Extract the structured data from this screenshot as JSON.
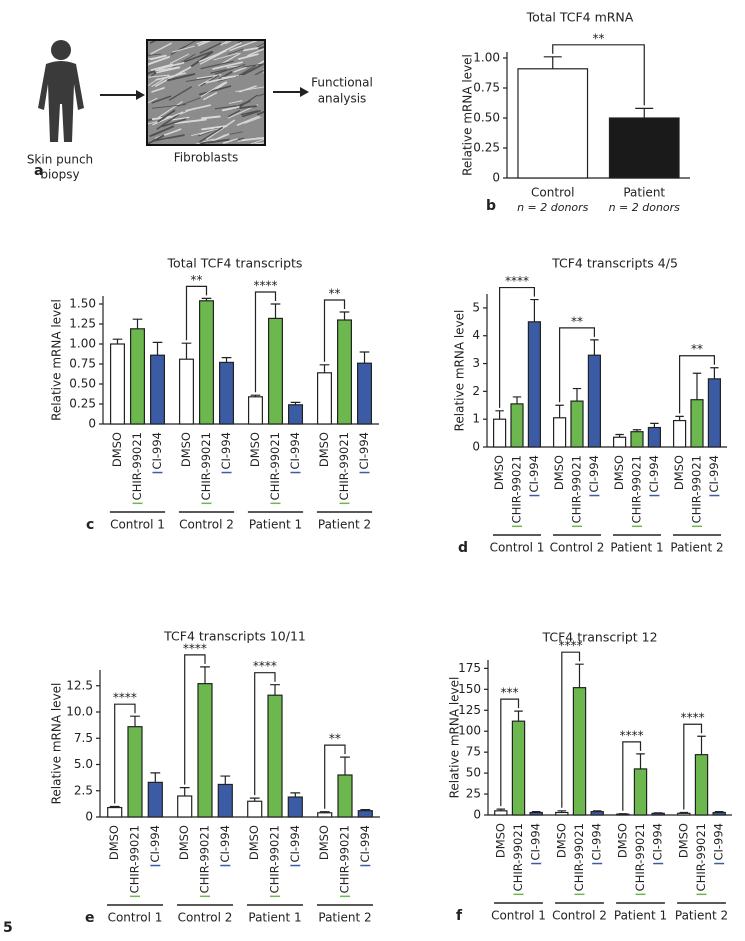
{
  "figure_number": "5",
  "panel_a": {
    "panel": "a",
    "source": [
      "Skin punch",
      "biopsy"
    ],
    "image_label": "Fibroblasts",
    "result": [
      "Functional",
      "analysis"
    ]
  },
  "chart_data": [
    {
      "type": "bar",
      "panel": "b",
      "title": "Total TCF4 mRNA",
      "ylabel": "Relative mRNA level",
      "categories": [
        "Control",
        "Patient"
      ],
      "category_notes": [
        "n = 2 donors",
        "n = 2 donors"
      ],
      "values": [
        0.91,
        0.5
      ],
      "errors": [
        0.1,
        0.08
      ],
      "colors": [
        "#ffffff",
        "#1a1a1a"
      ],
      "ylim": [
        0,
        1.05
      ],
      "yticks": [
        0,
        0.25,
        {
          "value": 0.5,
          "label": "0.50"
        },
        0.75,
        {
          "value": 1,
          "label": "1.00"
        }
      ],
      "annotations": [
        {
          "label": "**",
          "categories": [
            0,
            1
          ]
        }
      ]
    },
    {
      "type": "grouped_bar",
      "panel": "c",
      "title": "Total TCF4 transcripts",
      "ylabel": "Relative mRNA level",
      "categories": [
        "Control 1",
        "Control 2",
        "Patient 1",
        "Patient 2"
      ],
      "series": [
        {
          "name": "DMSO",
          "color": "#ffffff",
          "values": [
            1.0,
            0.81,
            0.34,
            0.64
          ],
          "errors": [
            0.06,
            0.2,
            0.02,
            0.1
          ]
        },
        {
          "name": "CHIR-99021",
          "color": "#6cb84e",
          "values": [
            1.19,
            1.54,
            1.32,
            1.3
          ],
          "errors": [
            0.12,
            0.03,
            0.18,
            0.1
          ]
        },
        {
          "name": "CI-994",
          "color": "#3b5ba5",
          "values": [
            0.86,
            0.77,
            0.24,
            0.76
          ],
          "errors": [
            0.16,
            0.06,
            0.03,
            0.14
          ]
        }
      ],
      "ylim": [
        0,
        1.6
      ],
      "yticks": [
        0,
        0.25,
        {
          "value": 0.5,
          "label": "0.50"
        },
        0.75,
        {
          "value": 1,
          "label": "1.00"
        },
        1.25,
        {
          "value": 1.5,
          "label": "1.50"
        }
      ],
      "annotations": [
        {
          "label": "**",
          "category": 1,
          "series": [
            0,
            1
          ]
        },
        {
          "label": "****",
          "category": 2,
          "series": [
            0,
            1
          ]
        },
        {
          "label": "**",
          "category": 3,
          "series": [
            0,
            1
          ]
        }
      ]
    },
    {
      "type": "grouped_bar",
      "panel": "d",
      "title": "TCF4 transcripts 4/5",
      "ylabel": "Relative mRNA level",
      "categories": [
        "Control 1",
        "Control 2",
        "Patient 1",
        "Patient 2"
      ],
      "series": [
        {
          "name": "DMSO",
          "color": "#ffffff",
          "values": [
            1.0,
            1.05,
            0.35,
            0.95
          ],
          "errors": [
            0.3,
            0.45,
            0.1,
            0.15
          ]
        },
        {
          "name": "CHIR-99021",
          "color": "#6cb84e",
          "values": [
            1.55,
            1.65,
            0.55,
            1.7
          ],
          "errors": [
            0.25,
            0.45,
            0.07,
            0.95
          ]
        },
        {
          "name": "CI-994",
          "color": "#3b5ba5",
          "values": [
            4.5,
            3.3,
            0.7,
            2.45
          ],
          "errors": [
            0.8,
            0.55,
            0.15,
            0.4
          ]
        }
      ],
      "ylim": [
        0,
        5.5
      ],
      "yticks": [
        0,
        1,
        2,
        3,
        4,
        5
      ],
      "annotations": [
        {
          "label": "****",
          "category": 0,
          "series": [
            0,
            2
          ]
        },
        {
          "label": "**",
          "category": 1,
          "series": [
            0,
            2
          ]
        },
        {
          "label": "**",
          "category": 3,
          "series": [
            0,
            2
          ]
        }
      ]
    },
    {
      "type": "grouped_bar",
      "panel": "e",
      "title": "TCF4 transcripts 10/11",
      "ylabel": "Relative mRNA level",
      "categories": [
        "Control 1",
        "Control 2",
        "Patient 1",
        "Patient 2"
      ],
      "series": [
        {
          "name": "DMSO",
          "color": "#ffffff",
          "values": [
            0.9,
            2.0,
            1.5,
            0.4
          ],
          "errors": [
            0.1,
            0.8,
            0.3,
            0.1
          ]
        },
        {
          "name": "CHIR-99021",
          "color": "#6cb84e",
          "values": [
            8.6,
            12.7,
            11.6,
            4.0
          ],
          "errors": [
            1.0,
            1.6,
            1.0,
            1.7
          ]
        },
        {
          "name": "CI-994",
          "color": "#3b5ba5",
          "values": [
            3.3,
            3.1,
            1.9,
            0.6
          ],
          "errors": [
            0.9,
            0.8,
            0.4,
            0.1
          ]
        }
      ],
      "ylim": [
        0,
        14
      ],
      "yticks": [
        0,
        2.5,
        {
          "value": 5,
          "label": "5.0"
        },
        7.5,
        {
          "value": 10,
          "label": "10.0"
        },
        12.5
      ],
      "annotations": [
        {
          "label": "****",
          "category": 0,
          "series": [
            0,
            1
          ]
        },
        {
          "label": "****",
          "category": 1,
          "series": [
            0,
            1
          ]
        },
        {
          "label": "****",
          "category": 2,
          "series": [
            0,
            1
          ]
        },
        {
          "label": "**",
          "category": 3,
          "series": [
            0,
            1
          ]
        }
      ]
    },
    {
      "type": "grouped_bar",
      "panel": "f",
      "title": "TCF4 transcript 12",
      "ylabel": "Relative mRNA level",
      "categories": [
        "Control 1",
        "Control 2",
        "Patient 1",
        "Patient 2"
      ],
      "series": [
        {
          "name": "DMSO",
          "color": "#ffffff",
          "values": [
            5,
            3,
            1,
            2
          ],
          "errors": [
            2,
            2,
            0.5,
            1
          ]
        },
        {
          "name": "CHIR-99021",
          "color": "#6cb84e",
          "values": [
            112,
            152,
            55,
            72
          ],
          "errors": [
            12,
            28,
            18,
            22
          ]
        },
        {
          "name": "CI-994",
          "color": "#3b5ba5",
          "values": [
            3,
            4,
            2,
            3
          ],
          "errors": [
            1,
            1,
            0.5,
            1
          ]
        }
      ],
      "ylim": [
        0,
        185
      ],
      "yticks": [
        0,
        25,
        50,
        75,
        100,
        125,
        150,
        175
      ],
      "annotations": [
        {
          "label": "***",
          "category": 0,
          "series": [
            0,
            1
          ]
        },
        {
          "label": "****",
          "category": 1,
          "series": [
            0,
            1
          ]
        },
        {
          "label": "****",
          "category": 2,
          "series": [
            0,
            1
          ]
        },
        {
          "label": "****",
          "category": 3,
          "series": [
            0,
            1
          ]
        }
      ]
    }
  ]
}
